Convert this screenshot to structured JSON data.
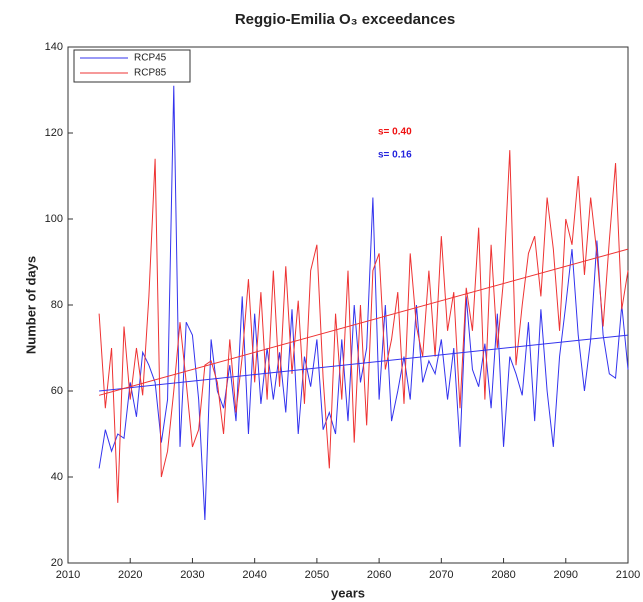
{
  "chart_data": {
    "type": "line",
    "title": "Reggio-Emilia O₃ exceedances",
    "xlabel": "years",
    "ylabel": "Number of days",
    "xlim": [
      2010,
      2100
    ],
    "xticks": [
      2010,
      2020,
      2030,
      2040,
      2050,
      2060,
      2070,
      2080,
      2090,
      2100
    ],
    "ylim": [
      20,
      140
    ],
    "yticks": [
      20,
      40,
      60,
      80,
      100,
      120,
      140
    ],
    "grid": false,
    "legend": "upper left",
    "x": [
      2015,
      2016,
      2017,
      2018,
      2019,
      2020,
      2021,
      2022,
      2023,
      2024,
      2025,
      2026,
      2027,
      2028,
      2029,
      2030,
      2031,
      2032,
      2033,
      2034,
      2035,
      2036,
      2037,
      2038,
      2039,
      2040,
      2041,
      2042,
      2043,
      2044,
      2045,
      2046,
      2047,
      2048,
      2049,
      2050,
      2051,
      2052,
      2053,
      2054,
      2055,
      2056,
      2057,
      2058,
      2059,
      2060,
      2061,
      2062,
      2063,
      2064,
      2065,
      2066,
      2067,
      2068,
      2069,
      2070,
      2071,
      2072,
      2073,
      2074,
      2075,
      2076,
      2077,
      2078,
      2079,
      2080,
      2081,
      2082,
      2083,
      2084,
      2085,
      2086,
      2087,
      2088,
      2089,
      2090,
      2091,
      2092,
      2093,
      2094,
      2095,
      2096,
      2097,
      2098,
      2099,
      2100
    ],
    "series": [
      {
        "name": "RCP45",
        "color": "#3333ee",
        "values": [
          42,
          51,
          46,
          50,
          49,
          62,
          54,
          69,
          66,
          62,
          48,
          58,
          131,
          47,
          76,
          73,
          58,
          30,
          72,
          60,
          56,
          66,
          53,
          82,
          50,
          78,
          57,
          70,
          58,
          69,
          55,
          79,
          50,
          68,
          61,
          72,
          51,
          55,
          50,
          72,
          53,
          80,
          62,
          70,
          105,
          58,
          80,
          53,
          60,
          68,
          58,
          80,
          62,
          67,
          64,
          72,
          58,
          70,
          47,
          82,
          65,
          61,
          71,
          56,
          78,
          47,
          68,
          64,
          59,
          76,
          53,
          79,
          60,
          47,
          68,
          80,
          93,
          73,
          60,
          72,
          95,
          73,
          64,
          63,
          80,
          65
        ]
      },
      {
        "name": "RCP85",
        "color": "#ee3333",
        "values": [
          78,
          56,
          70,
          34,
          75,
          58,
          70,
          59,
          82,
          114,
          40,
          46,
          60,
          76,
          62,
          47,
          51,
          66,
          67,
          62,
          50,
          72,
          55,
          68,
          86,
          62,
          83,
          58,
          88,
          61,
          89,
          64,
          81,
          57,
          88,
          94,
          63,
          42,
          78,
          58,
          88,
          48,
          80,
          52,
          88,
          92,
          65,
          72,
          83,
          57,
          92,
          75,
          68,
          88,
          68,
          96,
          74,
          83,
          56,
          84,
          74,
          98,
          58,
          94,
          70,
          86,
          116,
          66,
          80,
          92,
          96,
          82,
          105,
          93,
          74,
          100,
          94,
          110,
          87,
          105,
          92,
          75,
          95,
          113,
          79,
          88
        ]
      }
    ],
    "trends": [
      {
        "color": "#3333ee",
        "x": [
          2015,
          2100
        ],
        "values": [
          60,
          73
        ]
      },
      {
        "color": "#ee3333",
        "x": [
          2015,
          2100
        ],
        "values": [
          59,
          93
        ]
      }
    ],
    "annotations": [
      {
        "text": "s= 0.40",
        "color": "#ee1111"
      },
      {
        "text": "s= 0.16",
        "color": "#2222dd"
      }
    ]
  }
}
